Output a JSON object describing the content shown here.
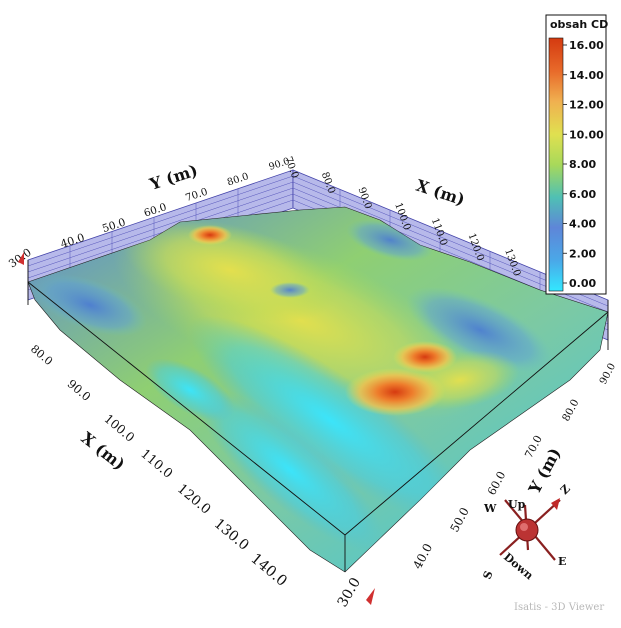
{
  "chart_data": {
    "type": "heatmap",
    "surface_type": "3d-surface",
    "title": "",
    "x_axis": {
      "label": "X (m)",
      "ticks": [
        "80.0",
        "90.0",
        "100.0",
        "110.0",
        "120.0",
        "130.0",
        "140.0"
      ],
      "back_ticks": [
        "70.0",
        "80.0",
        "90.0",
        "100.0",
        "110.0",
        "120.0",
        "130.0"
      ]
    },
    "y_axis": {
      "label": "Y (m)",
      "ticks": [
        "40.0",
        "50.0",
        "60.0",
        "70.0",
        "80.0",
        "90.0"
      ],
      "back_ticks": [
        "40.0",
        "50.0",
        "60.0",
        "70.0",
        "80.0",
        "90.0"
      ]
    },
    "z_corner_labels": [
      "30.0",
      "30.0"
    ],
    "colorbar": {
      "title": "obsah CD",
      "ticks": [
        "16.00",
        "14.00",
        "12.00",
        "10.00",
        "8.00",
        "6.00",
        "4.00",
        "2.00",
        "0.00"
      ],
      "range": [
        0,
        16.5
      ],
      "colors": [
        "#33e8ff",
        "#4aa8e8",
        "#5e86d8",
        "#4fc0b4",
        "#a8d95a",
        "#e0e050",
        "#f0b050",
        "#e86a2a",
        "#d43a10"
      ]
    },
    "peaks": [
      {
        "x": 108,
        "y": 78,
        "value": 16.0
      },
      {
        "x": 112,
        "y": 66,
        "value": 14.5
      },
      {
        "x": 78,
        "y": 45,
        "value": 14.0
      }
    ],
    "compass": {
      "up": "Up",
      "down": "Down",
      "e": "E",
      "w": "W",
      "s": "S",
      "z": "Z"
    },
    "watermark": "Isatis - 3D Viewer"
  }
}
